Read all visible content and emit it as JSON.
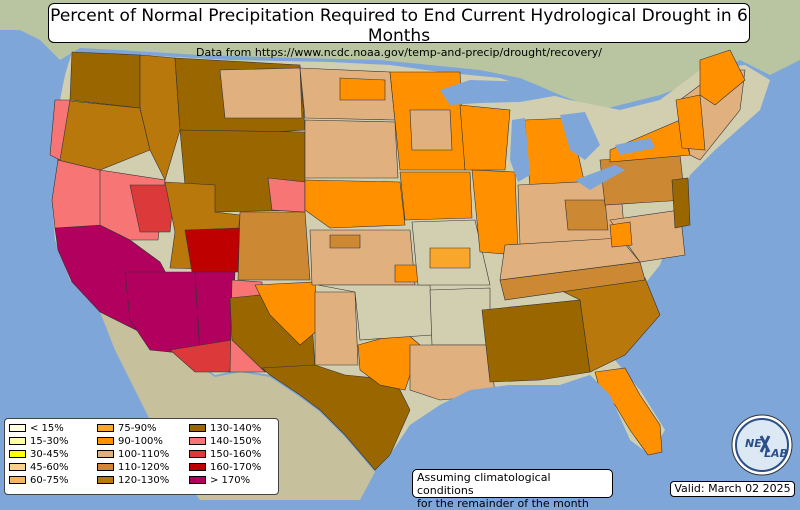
{
  "title": "Percent of Normal Precipitation Required to End Current Hydrological Drought in 6 Months",
  "subtitle": "Data from https://www.ncdc.noaa.gov/temp-and-precip/drought/recovery/",
  "legend": [
    {
      "label": "< 15%",
      "color": "#ffffe0"
    },
    {
      "label": "15-30%",
      "color": "#ffffa6"
    },
    {
      "label": "30-45%",
      "color": "#ffff00"
    },
    {
      "label": "45-60%",
      "color": "#fad08f"
    },
    {
      "label": "60-75%",
      "color": "#f8b561"
    },
    {
      "label": "75-90%",
      "color": "#f9a72b"
    },
    {
      "label": "90-100%",
      "color": "#ff9100"
    },
    {
      "label": "100-110%",
      "color": "#e0b17f"
    },
    {
      "label": "110-120%",
      "color": "#cc8833"
    },
    {
      "label": "120-130%",
      "color": "#b8780c"
    },
    {
      "label": "130-140%",
      "color": "#9a6600"
    },
    {
      "label": "140-150%",
      "color": "#f87575"
    },
    {
      "label": "150-160%",
      "color": "#dc3a3a"
    },
    {
      "label": "160-170%",
      "color": "#be0000"
    },
    {
      "label": "> 170%",
      "color": "#b1005e"
    }
  ],
  "note": {
    "line1": "Assuming climatological conditions",
    "line2": "for the remainder of the month"
  },
  "valid": "Valid: March 02 2025",
  "logo": {
    "text1": "NE",
    "text2": "LAB"
  },
  "colors": {
    "ocean": "#7fa6d9",
    "land": "#c9c6a4",
    "lakes": "#7fa6d9"
  }
}
